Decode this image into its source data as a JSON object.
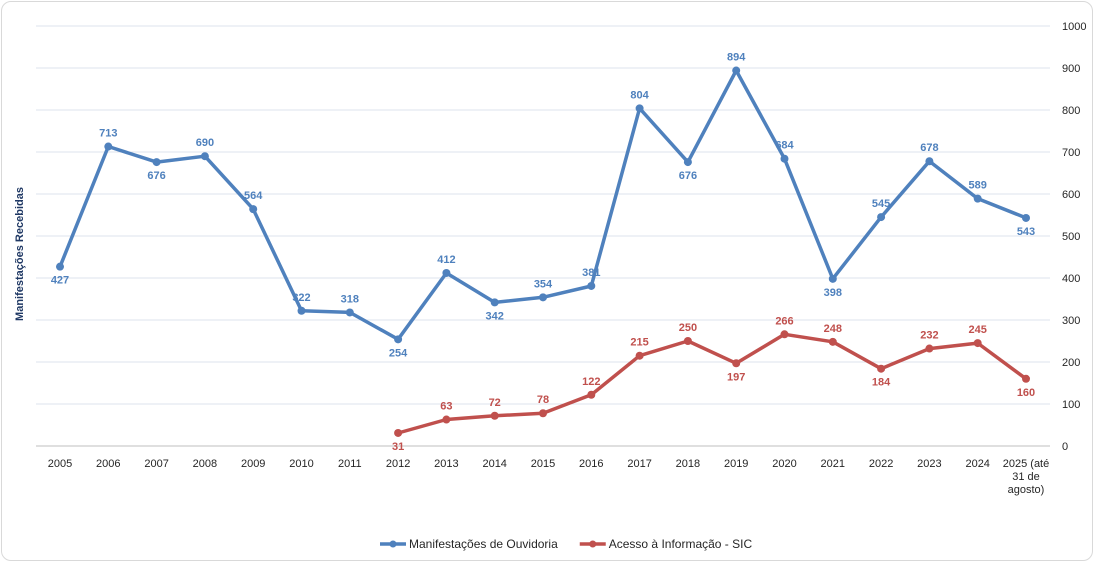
{
  "chart_data": {
    "type": "line",
    "title": "",
    "ylabel": "Manifestações Recebidas",
    "xlabel": "",
    "ylim": [
      0,
      1000
    ],
    "yticks": [
      0,
      100,
      200,
      300,
      400,
      500,
      600,
      700,
      800,
      900,
      1000
    ],
    "grid": true,
    "y_axis_side": "right",
    "legend_position": "bottom",
    "categories": [
      "2005",
      "2006",
      "2007",
      "2008",
      "2009",
      "2010",
      "2011",
      "2012",
      "2013",
      "2014",
      "2015",
      "2016",
      "2017",
      "2018",
      "2019",
      "2020",
      "2021",
      "2022",
      "2023",
      "2024",
      "2025 (até 31 de agosto)"
    ],
    "series": [
      {
        "name": "Manifestações de Ouvidoria",
        "color": "#4f81bd",
        "values": [
          427,
          713,
          676,
          690,
          564,
          322,
          318,
          254,
          412,
          342,
          354,
          381,
          804,
          676,
          894,
          684,
          398,
          545,
          678,
          589,
          543
        ]
      },
      {
        "name": "Acesso à Informação - SIC",
        "color": "#c0504d",
        "values": [
          null,
          null,
          null,
          null,
          null,
          null,
          null,
          31,
          63,
          72,
          78,
          122,
          215,
          250,
          197,
          266,
          248,
          184,
          232,
          245,
          160
        ]
      }
    ]
  }
}
